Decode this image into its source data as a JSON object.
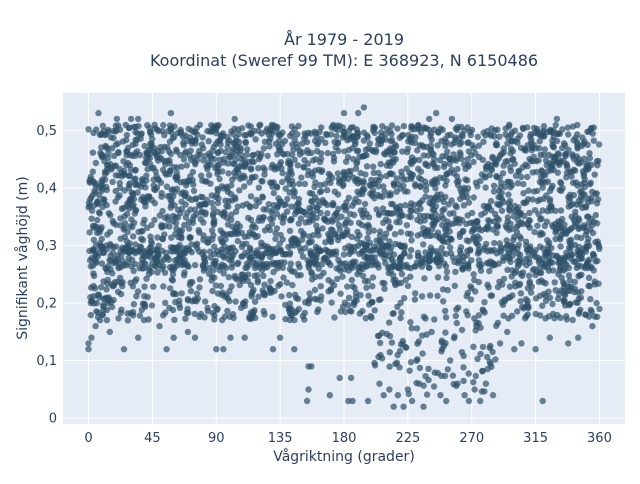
{
  "chart_data": {
    "type": "scatter",
    "title_line1": "År 1979 - 2019",
    "title_line2": "Koordinat (Sweref 99 TM): E 368923, N 6150486",
    "xlabel": "Vågriktning (grader)",
    "ylabel": "Signifikant våghöjd (m)",
    "xlim": [
      -18,
      378
    ],
    "ylim": [
      -0.01,
      0.565
    ],
    "xticks": [
      {
        "value": 0,
        "label": "0"
      },
      {
        "value": 45,
        "label": "45"
      },
      {
        "value": 90,
        "label": "90"
      },
      {
        "value": 135,
        "label": "135"
      },
      {
        "value": 180,
        "label": "180"
      },
      {
        "value": 225,
        "label": "225"
      },
      {
        "value": 270,
        "label": "270"
      },
      {
        "value": 315,
        "label": "315"
      },
      {
        "value": 360,
        "label": "360"
      }
    ],
    "yticks": [
      {
        "value": 0,
        "label": "0"
      },
      {
        "value": 0.1,
        "label": "0,1"
      },
      {
        "value": 0.2,
        "label": "0,2"
      },
      {
        "value": 0.3,
        "label": "0,3"
      },
      {
        "value": 0.4,
        "label": "0,4"
      },
      {
        "value": 0.5,
        "label": "0,5"
      }
    ],
    "grid": true,
    "marker_color": "#2e5169",
    "plot_bg": "#e5ecf6",
    "series": [
      {
        "dense_band": {
          "x_range": [
            0,
            360
          ],
          "y_range": [
            0.26,
            0.49
          ]
        },
        "points": [
          {
            "x": 0,
            "y": 0.12
          },
          {
            "x": 0,
            "y": 0.13
          },
          {
            "x": 2,
            "y": 0.14
          },
          {
            "x": 5,
            "y": 0.16
          },
          {
            "x": 7,
            "y": 0.53
          },
          {
            "x": 10,
            "y": 0.18
          },
          {
            "x": 15,
            "y": 0.15
          },
          {
            "x": 20,
            "y": 0.52
          },
          {
            "x": 25,
            "y": 0.12
          },
          {
            "x": 30,
            "y": 0.52
          },
          {
            "x": 35,
            "y": 0.52
          },
          {
            "x": 35,
            "y": 0.14
          },
          {
            "x": 50,
            "y": 0.16
          },
          {
            "x": 55,
            "y": 0.12
          },
          {
            "x": 58,
            "y": 0.53
          },
          {
            "x": 60,
            "y": 0.14
          },
          {
            "x": 70,
            "y": 0.15
          },
          {
            "x": 75,
            "y": 0.14
          },
          {
            "x": 90,
            "y": 0.12
          },
          {
            "x": 95,
            "y": 0.12
          },
          {
            "x": 100,
            "y": 0.14
          },
          {
            "x": 103,
            "y": 0.52
          },
          {
            "x": 110,
            "y": 0.14
          },
          {
            "x": 130,
            "y": 0.12
          },
          {
            "x": 135,
            "y": 0.14
          },
          {
            "x": 145,
            "y": 0.12
          },
          {
            "x": 155,
            "y": 0.09
          },
          {
            "x": 157,
            "y": 0.09
          },
          {
            "x": 155,
            "y": 0.05
          },
          {
            "x": 154,
            "y": 0.03
          },
          {
            "x": 170,
            "y": 0.04
          },
          {
            "x": 177,
            "y": 0.07
          },
          {
            "x": 180,
            "y": 0.53
          },
          {
            "x": 183,
            "y": 0.03
          },
          {
            "x": 185,
            "y": 0.07
          },
          {
            "x": 186,
            "y": 0.03
          },
          {
            "x": 190,
            "y": 0.53
          },
          {
            "x": 194,
            "y": 0.54
          },
          {
            "x": 197,
            "y": 0.03
          },
          {
            "x": 205,
            "y": 0.06
          },
          {
            "x": 208,
            "y": 0.04
          },
          {
            "x": 212,
            "y": 0.05
          },
          {
            "x": 215,
            "y": 0.02
          },
          {
            "x": 218,
            "y": 0.04
          },
          {
            "x": 222,
            "y": 0.02
          },
          {
            "x": 225,
            "y": 0.05
          },
          {
            "x": 228,
            "y": 0.03
          },
          {
            "x": 233,
            "y": 0.06
          },
          {
            "x": 236,
            "y": 0.02
          },
          {
            "x": 240,
            "y": 0.52
          },
          {
            "x": 245,
            "y": 0.53
          },
          {
            "x": 248,
            "y": 0.04
          },
          {
            "x": 252,
            "y": 0.03
          },
          {
            "x": 256,
            "y": 0.52
          },
          {
            "x": 260,
            "y": 0.06
          },
          {
            "x": 265,
            "y": 0.04
          },
          {
            "x": 268,
            "y": 0.03
          },
          {
            "x": 272,
            "y": 0.05
          },
          {
            "x": 276,
            "y": 0.03
          },
          {
            "x": 280,
            "y": 0.06
          },
          {
            "x": 285,
            "y": 0.04
          },
          {
            "x": 290,
            "y": 0.13
          },
          {
            "x": 295,
            "y": 0.15
          },
          {
            "x": 300,
            "y": 0.12
          },
          {
            "x": 305,
            "y": 0.13
          },
          {
            "x": 315,
            "y": 0.12
          },
          {
            "x": 320,
            "y": 0.03
          },
          {
            "x": 325,
            "y": 0.14
          },
          {
            "x": 330,
            "y": 0.52
          },
          {
            "x": 338,
            "y": 0.13
          },
          {
            "x": 345,
            "y": 0.14
          },
          {
            "x": 350,
            "y": 0.18
          },
          {
            "x": 355,
            "y": 0.16
          },
          {
            "x": 358,
            "y": 0.2
          },
          {
            "x": 360,
            "y": 0.19
          }
        ]
      }
    ]
  }
}
